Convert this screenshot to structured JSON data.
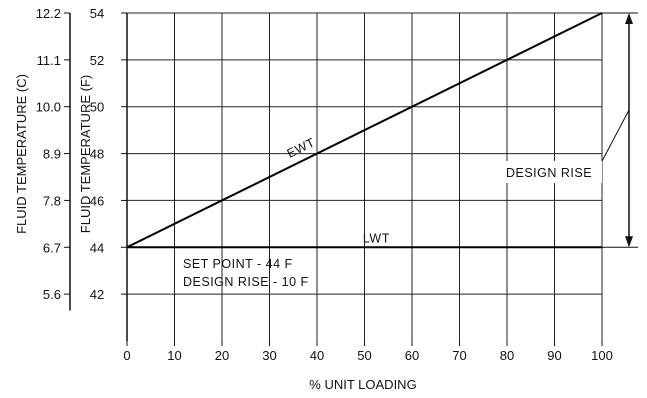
{
  "chart_data": {
    "type": "line",
    "title": "",
    "xlabel": "% UNIT LOADING",
    "ylabel": "FLUID TEMPERATURE (F)",
    "ylabel_secondary": "FLUID TEMPERATURE (C)",
    "xlim": [
      0,
      100
    ],
    "ylim": [
      40,
      54
    ],
    "grid": true,
    "x_ticks": [
      0,
      10,
      20,
      30,
      40,
      50,
      60,
      70,
      80,
      90,
      100
    ],
    "y_ticks": [
      42,
      44,
      46,
      48,
      50,
      52,
      54
    ],
    "y_secondary_ticks": [
      {
        "label": "12.2",
        "f": 54
      },
      {
        "label": "11.1",
        "f": 52
      },
      {
        "label": "10.0",
        "f": 50
      },
      {
        "label": "8.9",
        "f": 48
      },
      {
        "label": "7.8",
        "f": 46
      },
      {
        "label": "6.7",
        "f": 44
      },
      {
        "label": "5.6",
        "f": 42
      }
    ],
    "series": [
      {
        "name": "EWT",
        "x": [
          0,
          100
        ],
        "y": [
          44,
          54
        ]
      },
      {
        "name": "LWT",
        "x": [
          0,
          100
        ],
        "y": [
          44,
          44
        ]
      }
    ],
    "annotations": {
      "design_rise": {
        "label": "DESIGN RISE",
        "from": 44,
        "to": 54
      },
      "notes": [
        "SET POINT  - 44 F",
        "DESIGN  RISE - 10 F"
      ]
    }
  }
}
